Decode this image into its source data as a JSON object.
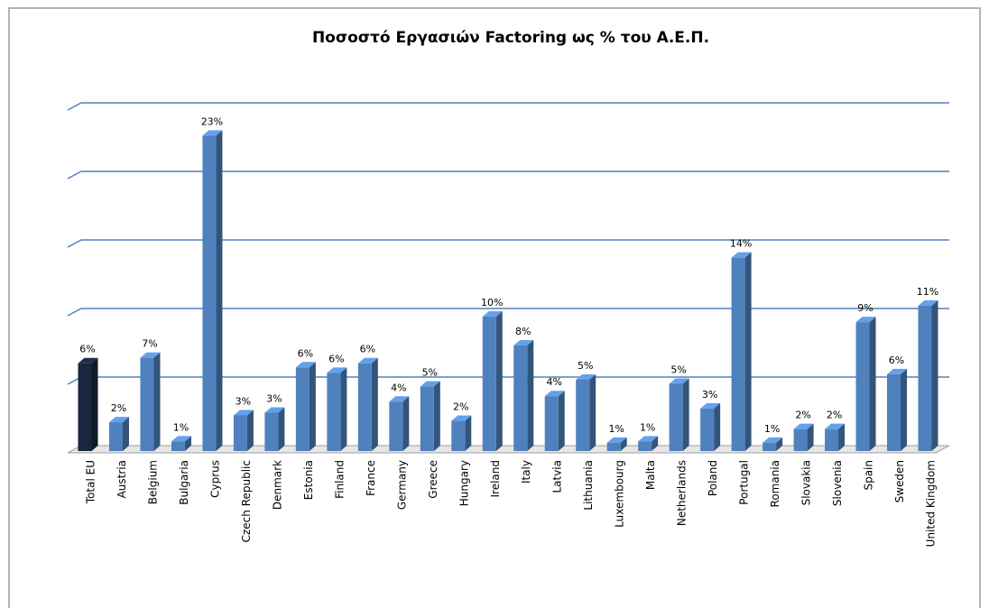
{
  "chart_data": {
    "type": "bar",
    "title": "Ποσοστό Εργασιών Factoring ως % του Α.Ε.Π.",
    "categories": [
      "Total EU",
      "Austria",
      "Belgium",
      "Bulgaria",
      "Cyprus",
      "Czech Republic",
      "Denmark",
      "Estonia",
      "Finland",
      "France",
      "Germany",
      "Greece",
      "Hungary",
      "Ireland",
      "Italy",
      "Latvia",
      "Lithuania",
      "Luxembourg",
      "Malta",
      "Netherlands",
      "Poland",
      "Portugal",
      "Romania",
      "Slovakia",
      "Slovenia",
      "Spain",
      "Sweden",
      "United Kingdom"
    ],
    "values": [
      6.4,
      2.1,
      6.8,
      0.7,
      23.0,
      2.6,
      2.8,
      6.1,
      5.7,
      6.4,
      3.6,
      4.7,
      2.2,
      9.8,
      7.7,
      4.0,
      5.2,
      0.6,
      0.7,
      4.9,
      3.1,
      14.1,
      0.6,
      1.6,
      1.6,
      9.4,
      5.6,
      10.6
    ],
    "value_labels": [
      "6%",
      "2%",
      "7%",
      "1%",
      "23%",
      "3%",
      "3%",
      "6%",
      "6%",
      "6%",
      "4%",
      "5%",
      "2%",
      "10%",
      "8%",
      "4%",
      "5%",
      "1%",
      "1%",
      "5%",
      "3%",
      "14%",
      "1%",
      "2%",
      "2%",
      "9%",
      "6%",
      "11%"
    ],
    "colors": [
      "#17273d",
      "#4f81bd",
      "#4f81bd",
      "#4f81bd",
      "#4f81bd",
      "#4f81bd",
      "#4f81bd",
      "#4f81bd",
      "#4f81bd",
      "#4f81bd",
      "#4f81bd",
      "#4f81bd",
      "#4f81bd",
      "#4f81bd",
      "#4f81bd",
      "#4f81bd",
      "#4f81bd",
      "#4f81bd",
      "#4f81bd",
      "#4f81bd",
      "#4f81bd",
      "#4f81bd",
      "#4f81bd",
      "#4f81bd",
      "#4f81bd",
      "#4f81bd",
      "#4f81bd",
      "#4f81bd"
    ],
    "ylim": [
      0,
      25
    ],
    "yticks": [
      0,
      5,
      10,
      15,
      20,
      25
    ],
    "grid": true,
    "grid_color": "#4f81bd"
  }
}
